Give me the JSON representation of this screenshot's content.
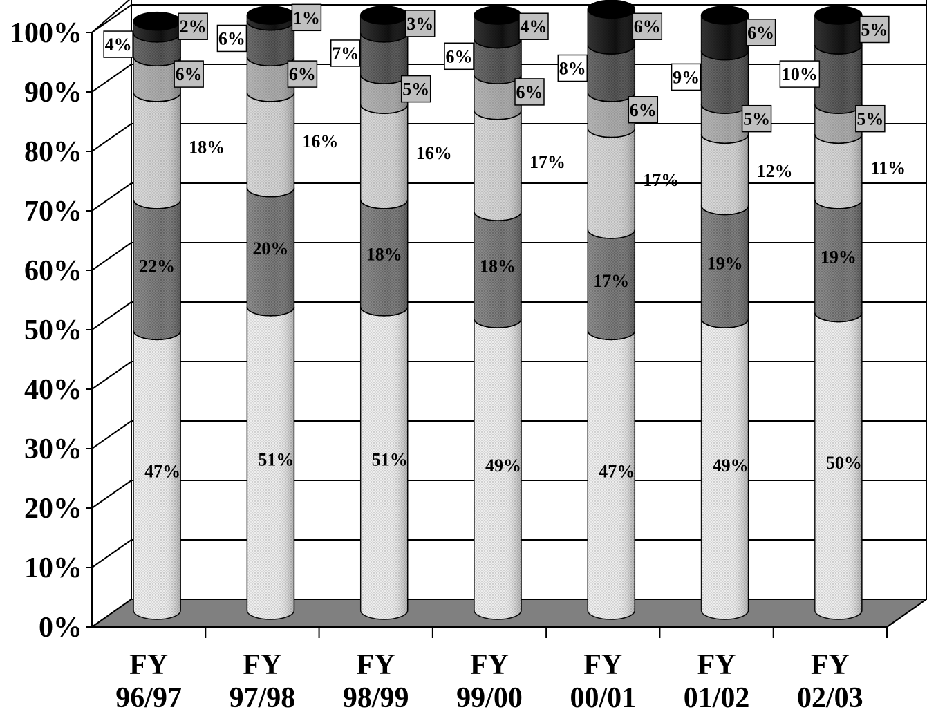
{
  "chart_data": {
    "type": "bar",
    "stacked": true,
    "percent": true,
    "style": "3d-cylinder",
    "title": "",
    "xlabel": "",
    "ylabel": "",
    "ylim": [
      0,
      100
    ],
    "ytick_labels": [
      "0%",
      "10%",
      "20%",
      "30%",
      "40%",
      "50%",
      "60%",
      "70%",
      "80%",
      "90%",
      "100%"
    ],
    "grid": true,
    "legend": "none",
    "categories": [
      {
        "line1": "FY",
        "line2": "96/97"
      },
      {
        "line1": "FY",
        "line2": "97/98"
      },
      {
        "line1": "FY",
        "line2": "98/99"
      },
      {
        "line1": "FY",
        "line2": "99/00"
      },
      {
        "line1": "FY",
        "line2": "00/01"
      },
      {
        "line1": "FY",
        "line2": "01/02"
      },
      {
        "line1": "FY",
        "line2": "02/03"
      }
    ],
    "series": [
      {
        "values": [
          47,
          51,
          51,
          49,
          47,
          49,
          50
        ],
        "labels": [
          "47%",
          "51%",
          "51%",
          "49%",
          "47%",
          "49%",
          "50%"
        ],
        "color": "#ececec"
      },
      {
        "values": [
          22,
          20,
          18,
          18,
          17,
          19,
          19
        ],
        "labels": [
          "22%",
          "20%",
          "18%",
          "18%",
          "17%",
          "19%",
          "19%"
        ],
        "color": "#7a7a7a"
      },
      {
        "values": [
          18,
          16,
          16,
          17,
          17,
          12,
          11
        ],
        "labels": [
          "18%",
          "16%",
          "16%",
          "17%",
          "17%",
          "12%",
          "11%"
        ],
        "color": "#d2d2d2"
      },
      {
        "values": [
          6,
          6,
          5,
          6,
          6,
          5,
          5
        ],
        "labels": [
          "6%",
          "6%",
          "5%",
          "6%",
          "6%",
          "5%",
          "5%"
        ],
        "color": "#a8a8a8"
      },
      {
        "values": [
          4,
          6,
          7,
          6,
          8,
          9,
          10
        ],
        "labels": [
          "4%",
          "6%",
          "7%",
          "6%",
          "8%",
          "9%",
          "10%"
        ],
        "color": "#555555"
      },
      {
        "values": [
          2,
          1,
          3,
          4,
          6,
          6,
          5
        ],
        "labels": [
          "2%",
          "1%",
          "3%",
          "4%",
          "6%",
          "6%",
          "5%"
        ],
        "color": "#111111"
      }
    ],
    "colors": {
      "floor": "#808080",
      "axis": "#000000",
      "label_box_white": "#ffffff",
      "label_box_gray": "#c0c0c0"
    }
  }
}
